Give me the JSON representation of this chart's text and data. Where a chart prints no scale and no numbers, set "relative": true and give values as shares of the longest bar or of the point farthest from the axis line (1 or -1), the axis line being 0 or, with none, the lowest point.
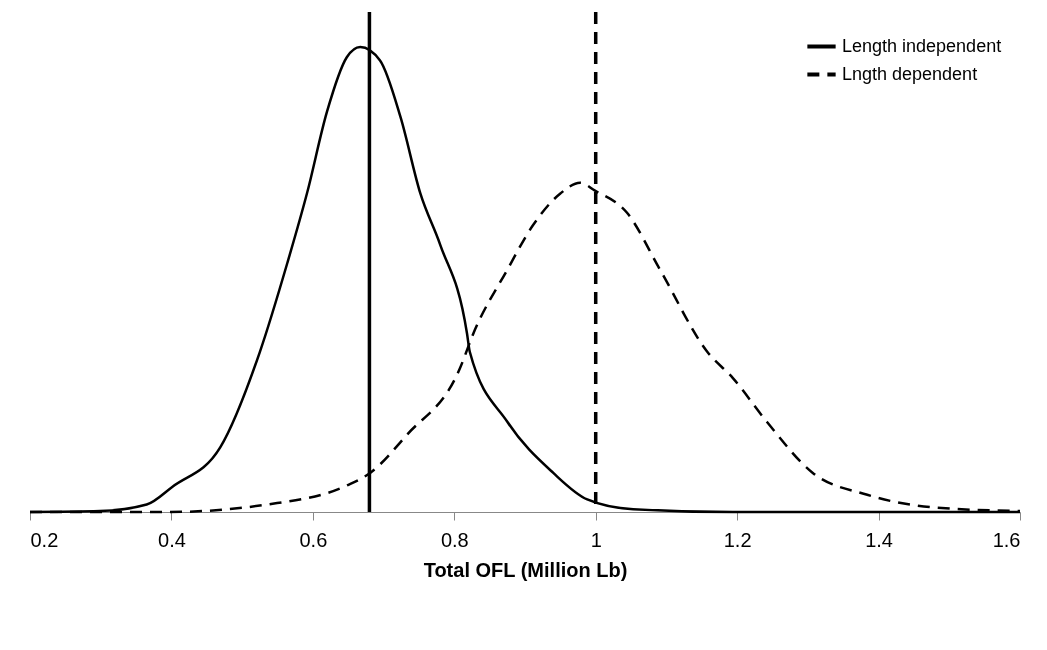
{
  "chart_data": {
    "type": "line",
    "relative": true,
    "xlabel": "Total OFL (Million Lb)",
    "xlim": [
      0.2,
      1.6
    ],
    "xticks": [
      0.2,
      0.4,
      0.6,
      0.8,
      1,
      1.2,
      1.4,
      1.6
    ],
    "grid": false,
    "legend": "top right",
    "marker": "none",
    "series": [
      {
        "name": "Length independent",
        "color": "#000000",
        "line_style": "solid",
        "x": [
          0.2,
          0.299,
          0.365,
          0.402,
          0.469,
          0.525,
          0.564,
          0.592,
          0.62,
          0.648,
          0.667,
          0.695,
          0.724,
          0.752,
          0.78,
          0.818,
          0.822,
          0.875,
          0.94,
          0.988,
          1.053,
          1.194,
          1.6
        ],
        "values": [
          0,
          0.002,
          0.016,
          0.055,
          0.139,
          0.344,
          0.536,
          0.687,
          0.861,
          0.978,
          1,
          0.971,
          0.849,
          0.685,
          0.575,
          0.384,
          0.344,
          0.194,
          0.084,
          0.027,
          0.006,
          0,
          0
        ]
      },
      {
        "name": "Lngth dependent",
        "color": "#000000",
        "line_style": "dashed",
        "x": [
          0.2,
          0.395,
          0.535,
          0.648,
          0.681,
          0.733,
          0.808,
          0.827,
          0.875,
          0.911,
          0.95,
          0.978,
          0.999,
          1.044,
          1.091,
          1.158,
          1.194,
          1.242,
          1.307,
          1.384,
          1.477,
          1.6
        ],
        "values": [
          0,
          0,
          0.016,
          0.057,
          0.084,
          0.166,
          0.309,
          0.384,
          0.521,
          0.616,
          0.685,
          0.708,
          0.691,
          0.644,
          0.521,
          0.344,
          0.288,
          0.194,
          0.084,
          0.037,
          0.01,
          0.002
        ]
      }
    ],
    "ref_lines": [
      {
        "axis": "x",
        "value": 0.68,
        "color": "#000000",
        "line_style": "solid"
      },
      {
        "axis": "x",
        "value": 1,
        "color": "#000000",
        "line_style": "dashed"
      }
    ]
  }
}
